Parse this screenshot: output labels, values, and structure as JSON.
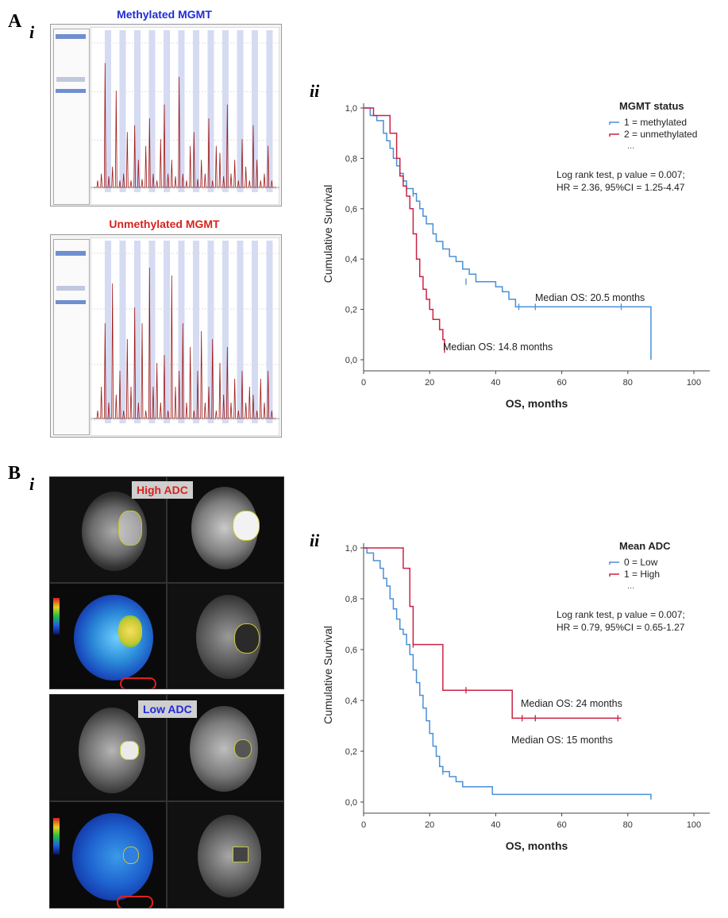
{
  "panel_a": {
    "letter": "A",
    "sub_i": "i",
    "sub_ii": "ii",
    "methylated_caption": "Methylated MGMT",
    "unmethylated_caption": "Unmethylated MGMT",
    "methylated_color": "#1f2bd6",
    "unmethylated_color": "#d8231d"
  },
  "panel_b": {
    "letter": "B",
    "sub_i": "i",
    "sub_ii": "ii",
    "high_tag": "High ADC",
    "low_tag": "Low ADC",
    "high_color": "#d8231d",
    "low_color": "#1f2bd6"
  },
  "chart_data": [
    {
      "type": "line",
      "subtype": "kaplan-meier",
      "xlabel": "OS, months",
      "ylabel": "Cumulative Survival",
      "xlim": [
        0,
        100
      ],
      "ylim": [
        0,
        1
      ],
      "xticks": [
        "0",
        "20",
        "40",
        "60",
        "80",
        "100"
      ],
      "yticks": [
        "0,0",
        "0,2",
        "0,4",
        "0,6",
        "0,8",
        "1,0"
      ],
      "legend_title": "MGMT status",
      "legend_extra": "...",
      "annotation_stats": [
        "Log rank test, p value = 0.007;",
        "HR = 2.36, 95%CI = 1.25-4.47"
      ],
      "series": [
        {
          "name": "1 = methylated",
          "color": "#4a8fd6",
          "steps": [
            [
              0,
              1.0
            ],
            [
              2,
              0.97
            ],
            [
              4,
              0.95
            ],
            [
              6,
              0.9
            ],
            [
              7,
              0.87
            ],
            [
              8,
              0.84
            ],
            [
              9,
              0.8
            ],
            [
              10,
              0.77
            ],
            [
              11,
              0.74
            ],
            [
              12,
              0.71
            ],
            [
              13,
              0.68
            ],
            [
              15,
              0.66
            ],
            [
              16,
              0.63
            ],
            [
              17,
              0.6
            ],
            [
              18,
              0.57
            ],
            [
              19,
              0.54
            ],
            [
              21,
              0.5
            ],
            [
              22,
              0.47
            ],
            [
              24,
              0.44
            ],
            [
              26,
              0.41
            ],
            [
              28,
              0.39
            ],
            [
              30,
              0.36
            ],
            [
              32,
              0.34
            ],
            [
              34,
              0.31
            ],
            [
              40,
              0.29
            ],
            [
              42,
              0.27
            ],
            [
              44,
              0.24
            ],
            [
              46,
              0.21
            ],
            [
              87,
              0.21
            ],
            [
              87,
              0.0
            ]
          ],
          "censored": [
            [
              15,
              0.66
            ],
            [
              31,
              0.31
            ],
            [
              47,
              0.21
            ],
            [
              52,
              0.21
            ],
            [
              78,
              0.21
            ]
          ],
          "median_label": "Median OS: 20.5 months"
        },
        {
          "name": "2 = unmethylated",
          "color": "#cc2244",
          "steps": [
            [
              0,
              1.0
            ],
            [
              3,
              0.97
            ],
            [
              8,
              0.9
            ],
            [
              10,
              0.8
            ],
            [
              11,
              0.73
            ],
            [
              12,
              0.69
            ],
            [
              13,
              0.65
            ],
            [
              14,
              0.6
            ],
            [
              15,
              0.5
            ],
            [
              16,
              0.4
            ],
            [
              17,
              0.33
            ],
            [
              18,
              0.28
            ],
            [
              19,
              0.24
            ],
            [
              20,
              0.2
            ],
            [
              21,
              0.16
            ],
            [
              23,
              0.12
            ],
            [
              24,
              0.08
            ],
            [
              24.5,
              0.04
            ]
          ],
          "censored": [
            [
              24.5,
              0.04
            ]
          ],
          "median_label": "Median OS: 14.8 months"
        }
      ]
    },
    {
      "type": "line",
      "subtype": "kaplan-meier",
      "xlabel": "OS, months",
      "ylabel": "Cumulative Survival",
      "xlim": [
        0,
        100
      ],
      "ylim": [
        0,
        1
      ],
      "xticks": [
        "0",
        "20",
        "40",
        "60",
        "80",
        "100"
      ],
      "yticks": [
        "0,0",
        "0,2",
        "0,4",
        "0,6",
        "0,8",
        "1,0"
      ],
      "legend_title": "Mean ADC",
      "legend_extra": "...",
      "annotation_stats": [
        "Log rank test, p value = 0.007;",
        "HR = 0.79, 95%CI = 0.65-1.27"
      ],
      "series": [
        {
          "name": "0 = Low",
          "color": "#4a8fd6",
          "steps": [
            [
              0,
              1.0
            ],
            [
              1,
              0.98
            ],
            [
              3,
              0.95
            ],
            [
              5,
              0.92
            ],
            [
              6,
              0.88
            ],
            [
              7,
              0.85
            ],
            [
              8,
              0.8
            ],
            [
              9,
              0.76
            ],
            [
              10,
              0.72
            ],
            [
              11,
              0.68
            ],
            [
              12,
              0.66
            ],
            [
              13,
              0.62
            ],
            [
              14,
              0.58
            ],
            [
              15,
              0.52
            ],
            [
              16,
              0.47
            ],
            [
              17,
              0.42
            ],
            [
              18,
              0.37
            ],
            [
              19,
              0.32
            ],
            [
              20,
              0.27
            ],
            [
              21,
              0.22
            ],
            [
              22,
              0.18
            ],
            [
              23,
              0.14
            ],
            [
              24,
              0.12
            ],
            [
              26,
              0.1
            ],
            [
              28,
              0.08
            ],
            [
              30,
              0.06
            ],
            [
              39,
              0.06
            ],
            [
              39,
              0.03
            ],
            [
              87,
              0.03
            ],
            [
              87,
              0.01
            ]
          ],
          "censored": [
            [
              24,
              0.12
            ]
          ],
          "median_label": "Median OS: 15 months"
        },
        {
          "name": "1 = High",
          "color": "#cc2244",
          "steps": [
            [
              0,
              1.0
            ],
            [
              12,
              1.0
            ],
            [
              12,
              0.92
            ],
            [
              14,
              0.92
            ],
            [
              14,
              0.77
            ],
            [
              15,
              0.77
            ],
            [
              15,
              0.62
            ],
            [
              24,
              0.62
            ],
            [
              24,
              0.44
            ],
            [
              45,
              0.44
            ],
            [
              45,
              0.33
            ],
            [
              78,
              0.33
            ]
          ],
          "censored": [
            [
              15,
              0.62
            ],
            [
              31,
              0.44
            ],
            [
              48,
              0.33
            ],
            [
              52,
              0.33
            ],
            [
              77,
              0.33
            ]
          ],
          "median_label": "Median OS: 24 months"
        }
      ]
    }
  ]
}
